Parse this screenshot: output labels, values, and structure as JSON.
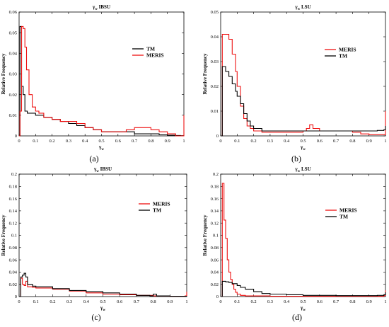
{
  "chart_data": [
    {
      "type": "line",
      "panel_label": "(a)",
      "title": "γw IBSU",
      "xlabel": "γw",
      "ylabel": "Relative Frequency",
      "xlim": [
        0,
        1
      ],
      "ylim": [
        0,
        0.06
      ],
      "xticks": [
        "0",
        "0.1",
        "0.2",
        "0.3",
        "0.4",
        "0.5",
        "0.6",
        "0.7",
        "0.8",
        "0.9",
        "1"
      ],
      "yticks": [
        "0",
        "0.01",
        "0.02",
        "0.03",
        "0.04",
        "0.05",
        "0.06"
      ],
      "legend_position": "upper-right",
      "series": [
        {
          "name": "TM",
          "color": "#000000",
          "x": [
            0,
            0.005,
            0.015,
            0.025,
            0.035,
            0.05,
            0.08,
            0.1,
            0.15,
            0.2,
            0.25,
            0.3,
            0.35,
            0.4,
            0.45,
            0.5,
            0.55,
            0.6,
            0.65,
            0.7,
            0.75,
            0.8,
            0.85,
            0.9,
            0.95,
            0.98,
            1
          ],
          "y": [
            0,
            0.053,
            0.024,
            0.02,
            0.012,
            0.011,
            0.011,
            0.01,
            0.009,
            0.008,
            0.007,
            0.006,
            0.005,
            0.004,
            0.003,
            0.002,
            0.002,
            0.002,
            0.002,
            0.001,
            0.001,
            0.001,
            0.0005,
            0.0003,
            0.0002,
            0.0001,
            0
          ]
        },
        {
          "name": "MERIS",
          "color": "#ee1111",
          "x": [
            0,
            0.005,
            0.015,
            0.025,
            0.035,
            0.045,
            0.06,
            0.08,
            0.1,
            0.12,
            0.15,
            0.2,
            0.25,
            0.3,
            0.35,
            0.4,
            0.45,
            0.5,
            0.55,
            0.6,
            0.65,
            0.7,
            0.75,
            0.8,
            0.85,
            0.9,
            0.95,
            0.99,
            1
          ],
          "y": [
            0,
            0.012,
            0.053,
            0.052,
            0.043,
            0.032,
            0.02,
            0.014,
            0.012,
            0.011,
            0.009,
            0.008,
            0.007,
            0.007,
            0.006,
            0.004,
            0.003,
            0.002,
            0.002,
            0.002,
            0.003,
            0.004,
            0.004,
            0.003,
            0.002,
            0.001,
            0,
            0,
            0.01
          ]
        }
      ]
    },
    {
      "type": "line",
      "panel_label": "(b)",
      "title": "γw LSU",
      "xlabel": "γw",
      "ylabel": "Relative Frequency",
      "xlim": [
        0,
        1
      ],
      "ylim": [
        0,
        0.05
      ],
      "xticks": [
        "0",
        "0.1",
        "0.2",
        "0.3",
        "0.4",
        "0.5",
        "0.6",
        "0.7",
        "0.8",
        "0.9",
        "1"
      ],
      "yticks": [
        "0",
        "0.01",
        "0.02",
        "0.03",
        "0.04",
        "0.05"
      ],
      "legend_position": "upper-right",
      "series": [
        {
          "name": "MERIS",
          "color": "#ee1111",
          "x": [
            0,
            0.01,
            0.03,
            0.05,
            0.07,
            0.09,
            0.1,
            0.12,
            0.14,
            0.16,
            0.18,
            0.2,
            0.25,
            0.3,
            0.4,
            0.5,
            0.52,
            0.54,
            0.56,
            0.6,
            0.7,
            0.8,
            0.85,
            0.9,
            0.95,
            0.99,
            1
          ],
          "y": [
            0,
            0.041,
            0.041,
            0.039,
            0.033,
            0.026,
            0.02,
            0.012,
            0.007,
            0.004,
            0.003,
            0.002,
            0.0015,
            0.0015,
            0.0015,
            0.002,
            0.003,
            0.0045,
            0.003,
            0.002,
            0.002,
            0.0015,
            0.0008,
            0.0005,
            0.0005,
            0.0005,
            0.01
          ]
        },
        {
          "name": "TM",
          "color": "#000000",
          "x": [
            0,
            0.01,
            0.03,
            0.05,
            0.07,
            0.09,
            0.1,
            0.12,
            0.14,
            0.16,
            0.18,
            0.2,
            0.25,
            0.3,
            0.4,
            0.5,
            0.6,
            0.7,
            0.8,
            0.9,
            0.95,
            0.99,
            1
          ],
          "y": [
            0,
            0.028,
            0.026,
            0.024,
            0.021,
            0.018,
            0.016,
            0.013,
            0.009,
            0.006,
            0.004,
            0.003,
            0.002,
            0.002,
            0.002,
            0.002,
            0.002,
            0.002,
            0.002,
            0.002,
            0.0022,
            0.0025,
            0.004
          ]
        }
      ]
    },
    {
      "type": "line",
      "panel_label": "(c)",
      "title": "γw IBSU",
      "xlabel": "γw",
      "ylabel": "Relative Frequency",
      "xlim": [
        0,
        1
      ],
      "ylim": [
        0,
        0.2
      ],
      "xticks": [
        "0",
        "0.1",
        "0.2",
        "0.3",
        "0.4",
        "0.5",
        "0.6",
        "0.7",
        "0.8",
        "0.9",
        "1"
      ],
      "yticks": [
        "0",
        "0.02",
        "0.04",
        "0.06",
        "0.08",
        "0.1",
        "0.12",
        "0.14",
        "0.16",
        "0.18",
        "0.2"
      ],
      "legend_position": "upper-right",
      "series": [
        {
          "name": "MERIS",
          "color": "#ee1111",
          "x": [
            0,
            0.01,
            0.02,
            0.03,
            0.04,
            0.05,
            0.08,
            0.1,
            0.2,
            0.3,
            0.4,
            0.5,
            0.6,
            0.7,
            0.8,
            0.9,
            0.95,
            0.99,
            1
          ],
          "y": [
            0,
            0.03,
            0.02,
            0.018,
            0.025,
            0.016,
            0.015,
            0.014,
            0.012,
            0.009,
            0.006,
            0.004,
            0.003,
            0.002,
            0.001,
            0.0005,
            0.0005,
            0.001,
            0.008
          ]
        },
        {
          "name": "TM",
          "color": "#000000",
          "x": [
            0,
            0.01,
            0.02,
            0.03,
            0.04,
            0.05,
            0.08,
            0.1,
            0.2,
            0.3,
            0.4,
            0.5,
            0.6,
            0.7,
            0.78,
            0.8,
            0.82,
            0.9,
            1
          ],
          "y": [
            0,
            0.032,
            0.035,
            0.038,
            0.032,
            0.02,
            0.017,
            0.016,
            0.013,
            0.01,
            0.008,
            0.006,
            0.004,
            0.002,
            0.001,
            0.004,
            0.001,
            0.0005,
            0.0003
          ]
        }
      ]
    },
    {
      "type": "line",
      "panel_label": "(d)",
      "title": "γw LSU",
      "xlabel": "γw",
      "ylabel": "Relative Frequency",
      "xlim": [
        0,
        1
      ],
      "ylim": [
        0,
        0.2
      ],
      "xticks": [
        "0",
        "0.1",
        "0.2",
        "0.3",
        "0.4",
        "0.5",
        "0.6",
        "0.7",
        "0.8",
        "0.9",
        "1"
      ],
      "yticks": [
        "0",
        "0.02",
        "0.04",
        "0.06",
        "0.08",
        "0.1",
        "0.12",
        "0.14",
        "0.16",
        "0.18",
        "0.2"
      ],
      "legend_position": "upper-right",
      "series": [
        {
          "name": "MERIS",
          "color": "#ee1111",
          "x": [
            0,
            0.01,
            0.02,
            0.03,
            0.04,
            0.05,
            0.06,
            0.07,
            0.08,
            0.09,
            0.1,
            0.12,
            0.15,
            0.2,
            0.3,
            0.5,
            0.7,
            0.9,
            0.99,
            1
          ],
          "y": [
            0,
            0.185,
            0.125,
            0.095,
            0.06,
            0.04,
            0.028,
            0.02,
            0.012,
            0.007,
            0.004,
            0.002,
            0.001,
            0.001,
            0.0005,
            0.0005,
            0.0005,
            0.0005,
            0.002,
            0.01
          ]
        },
        {
          "name": "TM",
          "color": "#000000",
          "x": [
            0,
            0.01,
            0.03,
            0.05,
            0.07,
            0.1,
            0.12,
            0.15,
            0.2,
            0.25,
            0.3,
            0.4,
            0.5,
            0.6,
            0.7,
            0.8,
            0.9,
            0.95,
            0.99,
            1
          ],
          "y": [
            0,
            0.025,
            0.024,
            0.023,
            0.021,
            0.018,
            0.015,
            0.012,
            0.008,
            0.005,
            0.004,
            0.003,
            0.002,
            0.002,
            0.0015,
            0.0015,
            0.0015,
            0.002,
            0.003,
            0.007
          ]
        }
      ]
    }
  ]
}
